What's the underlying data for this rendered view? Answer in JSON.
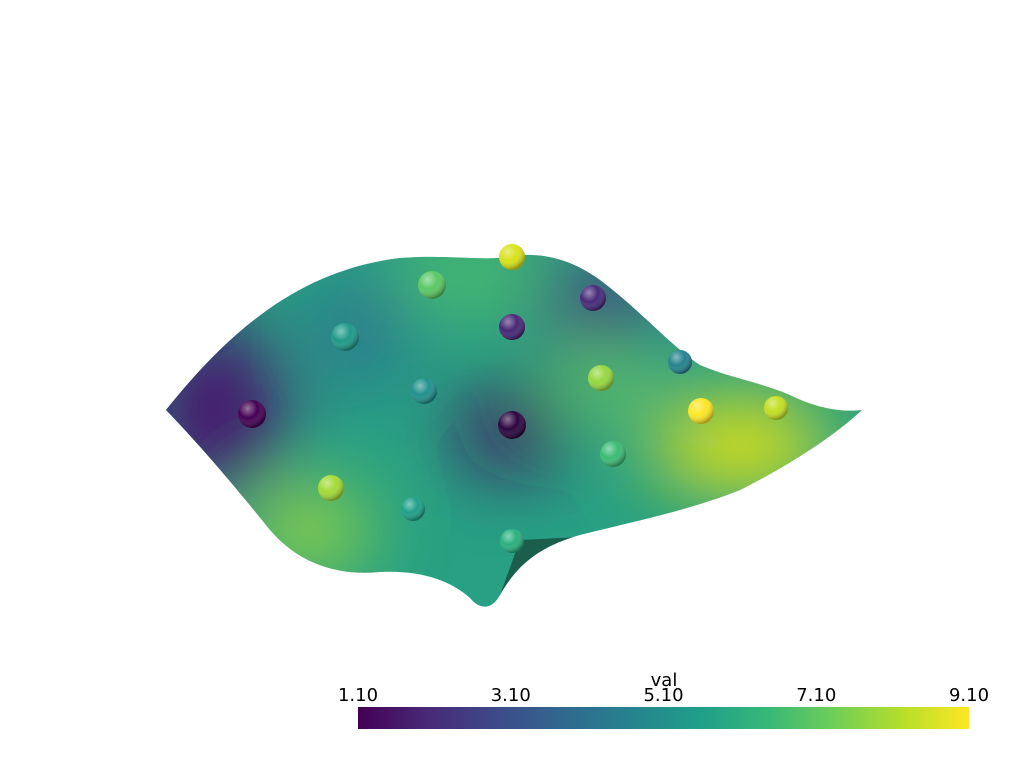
{
  "colorbar": {
    "title": "val",
    "range": [
      1.1,
      9.1
    ],
    "ticks": [
      {
        "value": 1.1,
        "label": "1.10"
      },
      {
        "value": 3.1,
        "label": "3.10"
      },
      {
        "value": 5.1,
        "label": "5.10"
      },
      {
        "value": 7.1,
        "label": "7.10"
      },
      {
        "value": 9.1,
        "label": "9.10"
      }
    ],
    "colors": [
      "#440154",
      "#482878",
      "#3e4989",
      "#31688e",
      "#26828e",
      "#1f9e89",
      "#35b779",
      "#6ece58",
      "#b5de2b",
      "#fde725"
    ]
  }
}
